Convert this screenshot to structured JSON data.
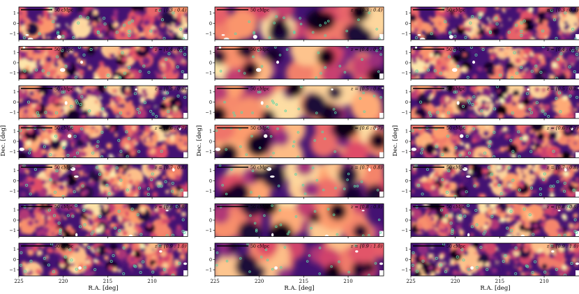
{
  "chart_data": {
    "type": "heatmap",
    "layout": {
      "columns": 3,
      "rows": 7
    },
    "x_axis": {
      "label": "R.A. [deg]",
      "range": [
        225,
        206
      ],
      "ticks": [
        225,
        220,
        215,
        210
      ],
      "tick_labels": [
        "225",
        "220",
        "215",
        "210"
      ]
    },
    "y_axis": {
      "label": "Dec. [deg]",
      "range": [
        -1.6,
        1.6
      ],
      "ticks": [
        1,
        0,
        -1
      ],
      "tick_labels": [
        "1",
        "0",
        "−1"
      ]
    },
    "scale_bar_label": "50 cMpc",
    "redshift_bins": [
      "z = [0.3 : 0.4)",
      "z = [0.4 : 0.5)",
      "z = [0.5 : 0.6)",
      "z = [0.6 : 0.7)",
      "z = [0.7 : 0.8)",
      "z = [0.8 : 0.9)",
      "z = [0.9 : 1.0)"
    ],
    "column_smoothing": [
      "fine",
      "coarse",
      "fine"
    ],
    "colormap": [
      "#000004",
      "#3b0f70",
      "#8c2981",
      "#de4968",
      "#fe9f6d",
      "#fcfdbf"
    ],
    "marker_color": "#5bd6a6",
    "mask_color": "#ffffff",
    "grid": false
  }
}
